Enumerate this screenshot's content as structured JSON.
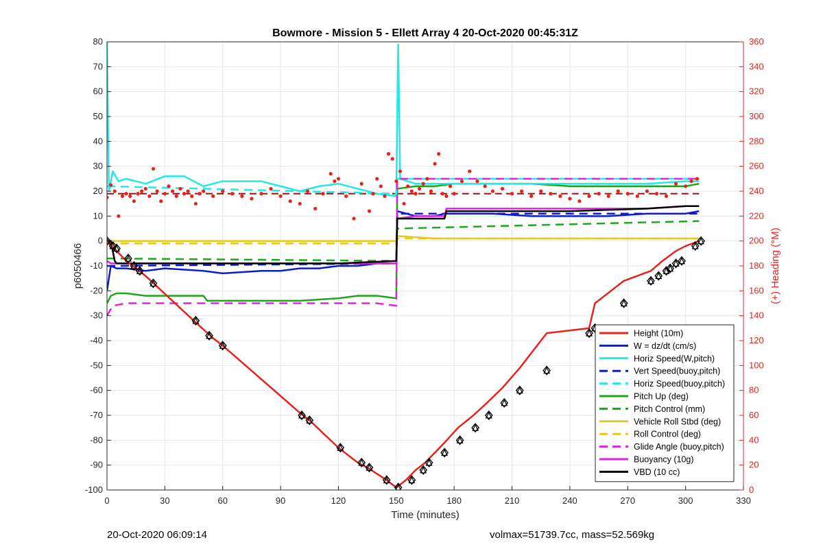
{
  "chart_data": {
    "type": "line",
    "title": "Bowmore - Mission 5 - Ellett Array 4 20-Oct-2020 00:45:31Z",
    "xlabel": "Time (minutes)",
    "ylabel_left": "p6050466",
    "ylabel_right": "(+) Heading (°M)",
    "xlim": [
      0,
      330
    ],
    "ylim_left": [
      -100,
      80
    ],
    "ylim_right": [
      0,
      360
    ],
    "xticks": [
      0,
      30,
      60,
      90,
      120,
      150,
      180,
      210,
      240,
      270,
      300,
      330
    ],
    "yticks_left": [
      -100,
      -90,
      -80,
      -70,
      -60,
      -50,
      -40,
      -30,
      -20,
      -10,
      0,
      10,
      20,
      30,
      40,
      50,
      60,
      70,
      80
    ],
    "yticks_right": [
      0,
      20,
      40,
      60,
      80,
      100,
      120,
      140,
      160,
      180,
      200,
      220,
      240,
      260,
      280,
      300,
      320,
      340,
      360
    ],
    "grid": true,
    "legend_position": "bottom-right",
    "series": [
      {
        "name": "Height (10m)",
        "color": "#e8211b",
        "style": "solid",
        "x": [
          0,
          10,
          20,
          45,
          55,
          60,
          100,
          105,
          120,
          130,
          135,
          145,
          150,
          155,
          160,
          165,
          170,
          175,
          182,
          190,
          197,
          205,
          214,
          228,
          250,
          253,
          268,
          282,
          288,
          295,
          300,
          307
        ],
        "y": [
          0,
          -8,
          -14,
          -32,
          -39,
          -42,
          -69,
          -72,
          -83,
          -89,
          -91,
          -96,
          -99,
          -96,
          -92,
          -89,
          -85,
          -81,
          -75,
          -70,
          -65,
          -59,
          -51,
          -37,
          -35,
          -25,
          -16,
          -12,
          -8,
          -4,
          -2,
          0
        ]
      },
      {
        "name": "W = dz/dt (cm/s)",
        "color": "#0b1bd0",
        "style": "solid",
        "x": [
          0,
          2,
          5,
          10,
          20,
          30,
          50,
          60,
          80,
          90,
          100,
          110,
          120,
          130,
          140,
          150,
          150.5,
          160,
          170,
          175,
          180,
          190,
          200,
          220,
          240,
          260,
          280,
          300,
          307
        ],
        "y": [
          -20,
          -10,
          -11,
          -11,
          -12,
          -11,
          -12,
          -13,
          -12,
          -12,
          -11,
          -11,
          -10,
          -10,
          -9,
          -9,
          12,
          10,
          10,
          11,
          11,
          11,
          11,
          10,
          10,
          10,
          11,
          11,
          12
        ]
      },
      {
        "name": "Horiz Speed(W,pitch)",
        "color": "#22e8e8",
        "style": "solid",
        "x": [
          0,
          1,
          3,
          6,
          10,
          20,
          30,
          40,
          50,
          60,
          70,
          80,
          90,
          100,
          110,
          120,
          130,
          140,
          150,
          151,
          152,
          160,
          170,
          180,
          200,
          220,
          240,
          260,
          280,
          300,
          307
        ],
        "y": [
          80,
          20,
          28,
          24,
          25,
          23,
          26,
          26,
          22,
          24,
          24,
          24,
          22,
          20,
          22,
          23,
          21,
          19,
          18,
          79,
          25,
          23,
          23,
          23,
          23,
          23,
          23,
          23,
          23,
          24,
          24
        ]
      },
      {
        "name": "Vert Speed(buoy,pitch)",
        "color": "#0b1bd0",
        "style": "dashed",
        "x": [
          0,
          150,
          150.5,
          307
        ],
        "y": [
          -10,
          -9,
          11,
          11
        ]
      },
      {
        "name": "Horiz Speed(buoy,pitch)",
        "color": "#22e8e8",
        "style": "dashed",
        "x": [
          0,
          150,
          150.5,
          307
        ],
        "y": [
          22,
          19,
          25,
          25
        ]
      },
      {
        "name": "Pitch Up (deg)",
        "color": "#1aa81a",
        "style": "solid",
        "x": [
          0,
          2,
          5,
          10,
          20,
          30,
          50,
          52,
          60,
          80,
          100,
          120,
          130,
          140,
          150,
          150.5,
          160,
          170,
          180,
          200,
          220,
          240,
          260,
          280,
          300,
          307
        ],
        "y": [
          -25,
          -22,
          -21,
          -21,
          -22,
          -22,
          -22,
          -24,
          -24,
          -24,
          -24,
          -23,
          -22,
          -22,
          -23,
          21,
          22,
          22,
          23,
          23,
          23,
          22,
          22,
          22,
          22,
          23
        ]
      },
      {
        "name": "Pitch Control (mm)",
        "color": "#1aa81a",
        "style": "dashed",
        "x": [
          0,
          150,
          150.5,
          307
        ],
        "y": [
          -7,
          -8,
          5,
          8
        ]
      },
      {
        "name": "Vehicle Roll Stbd (deg)",
        "color": "#e5c71d",
        "style": "solid",
        "x": [
          0,
          20,
          40,
          60,
          80,
          100,
          120,
          140,
          150,
          150.5,
          170,
          190,
          210,
          230,
          250,
          270,
          290,
          300,
          307
        ],
        "y": [
          0,
          0,
          0,
          0,
          0,
          0,
          0,
          0,
          0,
          2,
          1,
          1,
          1,
          1,
          1,
          1,
          1,
          1,
          1
        ]
      },
      {
        "name": "Roll Control (deg)",
        "color": "#e5c71d",
        "style": "dashed",
        "x": [
          0,
          150,
          150.5,
          307
        ],
        "y": [
          -1,
          -1,
          1,
          1
        ]
      },
      {
        "name": "Glide Angle (buoy,pitch)",
        "color": "#e021e0",
        "style": "dashed",
        "x": [
          0,
          3,
          10,
          20,
          40,
          60,
          80,
          100,
          120,
          140,
          150,
          150.5,
          170,
          200,
          230,
          260,
          280,
          300,
          307
        ],
        "y": [
          -30,
          -26,
          -25,
          -25,
          -25,
          -25,
          -25,
          -25,
          -25,
          -25,
          -26,
          25,
          25,
          25,
          25,
          25,
          25,
          25,
          25
        ]
      },
      {
        "name": "Buoyancy (10g)",
        "color": "#e021e0",
        "style": "solid",
        "x": [
          0,
          2,
          10,
          40,
          80,
          120,
          150,
          150.5,
          160,
          175,
          176,
          200,
          240,
          280,
          300,
          307
        ],
        "y": [
          -8,
          -9,
          -9,
          -9,
          -9,
          -9,
          -9,
          9,
          10,
          10,
          13,
          13,
          13,
          13,
          14,
          14
        ]
      },
      {
        "name": "VBD (10 cc)",
        "color": "#000000",
        "style": "solid",
        "x": [
          0,
          2,
          4,
          5,
          10,
          40,
          80,
          120,
          150,
          150.5,
          160,
          175,
          176,
          200,
          240,
          280,
          300,
          307
        ],
        "y": [
          0,
          0,
          -8,
          -9,
          -9,
          -9,
          -9,
          -9,
          -8,
          9,
          9,
          9,
          12,
          12,
          12,
          13,
          14,
          14
        ]
      }
    ],
    "heading_points": {
      "name": "Heading",
      "color": "#e8211b",
      "axis": "right",
      "x": [
        0,
        2,
        4,
        6,
        8,
        10,
        12,
        14,
        16,
        18,
        20,
        22,
        24,
        26,
        28,
        30,
        32,
        34,
        36,
        38,
        40,
        42,
        44,
        46,
        48,
        50,
        55,
        60,
        65,
        70,
        75,
        80,
        85,
        90,
        95,
        100,
        104,
        108,
        112,
        116,
        118,
        120,
        124,
        128,
        132,
        136,
        138,
        140,
        142,
        144,
        146,
        148,
        150,
        152,
        154,
        156,
        158,
        160,
        162,
        164,
        166,
        168,
        170,
        172,
        174,
        176,
        178,
        180,
        184,
        188,
        192,
        196,
        200,
        205,
        210,
        215,
        220,
        225,
        230,
        235,
        240,
        245,
        250,
        255,
        260,
        265,
        270,
        275,
        280,
        285,
        290,
        295,
        300,
        303,
        306
      ],
      "y": [
        235,
        245,
        240,
        220,
        236,
        238,
        236,
        232,
        238,
        240,
        242,
        236,
        258,
        240,
        232,
        238,
        244,
        240,
        236,
        242,
        238,
        240,
        236,
        230,
        238,
        240,
        236,
        240,
        238,
        236,
        234,
        238,
        242,
        236,
        232,
        230,
        240,
        226,
        238,
        254,
        248,
        250,
        236,
        218,
        246,
        224,
        238,
        250,
        244,
        236,
        270,
        266,
        248,
        256,
        230,
        244,
        240,
        238,
        242,
        246,
        250,
        240,
        262,
        270,
        238,
        236,
        244,
        238,
        248,
        256,
        248,
        244,
        240,
        242,
        238,
        240,
        236,
        240,
        238,
        236,
        234,
        232,
        236,
        238,
        236,
        240,
        238,
        236,
        240,
        238,
        236,
        246,
        244,
        248,
        250
      ]
    },
    "heading_refs": [
      {
        "color": "#8b1010",
        "style": "dashed",
        "x": [
          0,
          150
        ],
        "y": [
          238,
          238
        ]
      },
      {
        "color": "#8b1010",
        "style": "dashed",
        "x": [
          150,
          307
        ],
        "y": [
          238,
          238
        ]
      }
    ],
    "height_markers": {
      "x": [
        0,
        3,
        5,
        11,
        14,
        17,
        24,
        46,
        53,
        60,
        101,
        105,
        121,
        132,
        136,
        145,
        151,
        158,
        164,
        167,
        175,
        183,
        191,
        198,
        206,
        214,
        228,
        250,
        253,
        268,
        282,
        286,
        290,
        292,
        295,
        298,
        305,
        308
      ],
      "y": [
        0,
        -2,
        -3,
        -7,
        -10,
        -12,
        -17,
        -32,
        -38,
        -42,
        -70,
        -72,
        -83,
        -89,
        -91,
        -96,
        -99,
        -96,
        -92,
        -89,
        -85,
        -80,
        -75,
        -70,
        -65,
        -60,
        -52,
        -37,
        -35,
        -25,
        -16,
        -14,
        -12,
        -11,
        -9,
        -8,
        -2,
        0
      ]
    }
  },
  "legend": [
    {
      "label": "Height (10m)",
      "color": "#e8211b",
      "style": "solid"
    },
    {
      "label": "W = dz/dt (cm/s)",
      "color": "#0b1bd0",
      "style": "solid"
    },
    {
      "label": "Horiz Speed(W,pitch)",
      "color": "#22e8e8",
      "style": "solid"
    },
    {
      "label": "Vert Speed(buoy,pitch)",
      "color": "#0b1bd0",
      "style": "dashed"
    },
    {
      "label": "Horiz Speed(buoy,pitch)",
      "color": "#22e8e8",
      "style": "dashed"
    },
    {
      "label": "Pitch Up (deg)",
      "color": "#1aa81a",
      "style": "solid"
    },
    {
      "label": "Pitch Control (mm)",
      "color": "#1aa81a",
      "style": "dashed"
    },
    {
      "label": "Vehicle Roll Stbd (deg)",
      "color": "#e5c71d",
      "style": "solid"
    },
    {
      "label": "Roll Control (deg)",
      "color": "#e5c71d",
      "style": "dashed"
    },
    {
      "label": "Glide Angle (buoy,pitch)",
      "color": "#e021e0",
      "style": "dashed"
    },
    {
      "label": "Buoyancy (10g)",
      "color": "#e021e0",
      "style": "solid"
    },
    {
      "label": "VBD (10 cc)",
      "color": "#000000",
      "style": "solid"
    }
  ],
  "footer": {
    "left": "20-Oct-2020 06:09:14",
    "right": "volmax=51739.7cc, mass=52.569kg"
  }
}
